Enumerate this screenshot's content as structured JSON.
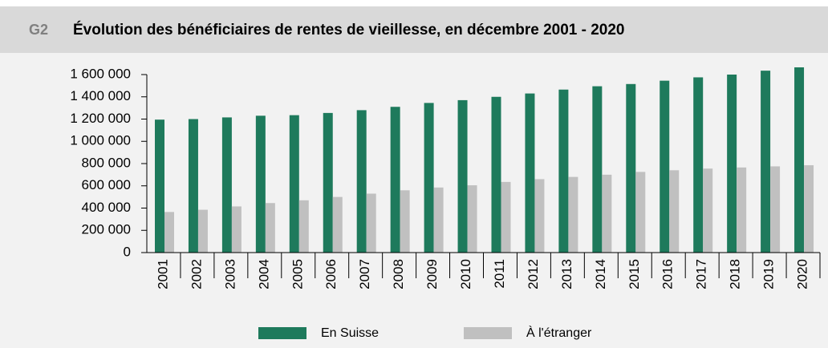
{
  "chart_data": {
    "type": "bar",
    "figure_label": "G2",
    "title": "Évolution des bénéficiaires de rentes de vieillesse, en décembre 2001 - 2020",
    "categories": [
      "2001",
      "2002",
      "2003",
      "2004",
      "2005",
      "2006",
      "2007",
      "2008",
      "2009",
      "2010",
      "2011",
      "2012",
      "2013",
      "2014",
      "2015",
      "2016",
      "2017",
      "2018",
      "2019",
      "2020"
    ],
    "series": [
      {
        "name": "En Suisse",
        "color": "#1e7a5c",
        "values": [
          1195000,
          1200000,
          1215000,
          1230000,
          1235000,
          1255000,
          1280000,
          1310000,
          1345000,
          1370000,
          1400000,
          1430000,
          1465000,
          1495000,
          1515000,
          1545000,
          1575000,
          1600000,
          1635000,
          1665000
        ]
      },
      {
        "name": "À l'étranger",
        "color": "#c0c0c0",
        "values": [
          365000,
          385000,
          415000,
          445000,
          470000,
          500000,
          530000,
          560000,
          585000,
          605000,
          635000,
          660000,
          680000,
          700000,
          725000,
          740000,
          755000,
          765000,
          775000,
          785000
        ]
      }
    ],
    "ylim": [
      0,
      1600000
    ],
    "yticks": [
      0,
      {
        "value": 200000,
        "label": "200 000"
      },
      {
        "value": 400000,
        "label": "400 000"
      },
      {
        "value": 600000,
        "label": "600 000"
      },
      {
        "value": 800000,
        "label": "800 000"
      },
      {
        "value": 1000000,
        "label": "1 000 000"
      },
      {
        "value": 1200000,
        "label": "1 200 000"
      },
      {
        "value": 1400000,
        "label": "1 400 000"
      },
      {
        "value": 1600000,
        "label": "1 600 000"
      }
    ],
    "legend": "bottom"
  }
}
